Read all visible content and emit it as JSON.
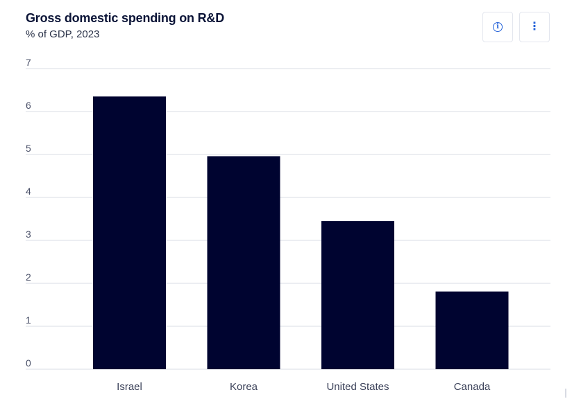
{
  "header": {
    "title": "Gross domestic spending on R&D",
    "subtitle": "% of GDP, 2023",
    "info_icon": "info-icon",
    "more_icon": "more-vertical-icon",
    "info_glyph": "i",
    "more_glyph": "⋮"
  },
  "colors": {
    "bar": "#000430",
    "grid": "#d9dce6",
    "title": "#0b1437",
    "accent": "#2563d9"
  },
  "chart_data": {
    "type": "bar",
    "title": "Gross domestic spending on R&D",
    "subtitle": "% of GDP, 2023",
    "categories": [
      "Israel",
      "Korea",
      "United States",
      "Canada"
    ],
    "values": [
      6.35,
      4.96,
      3.45,
      1.81
    ],
    "yticks": [
      0,
      1,
      2,
      3,
      4,
      5,
      6,
      7
    ],
    "ylim": [
      0,
      7
    ],
    "grid": true,
    "legend": "none"
  }
}
